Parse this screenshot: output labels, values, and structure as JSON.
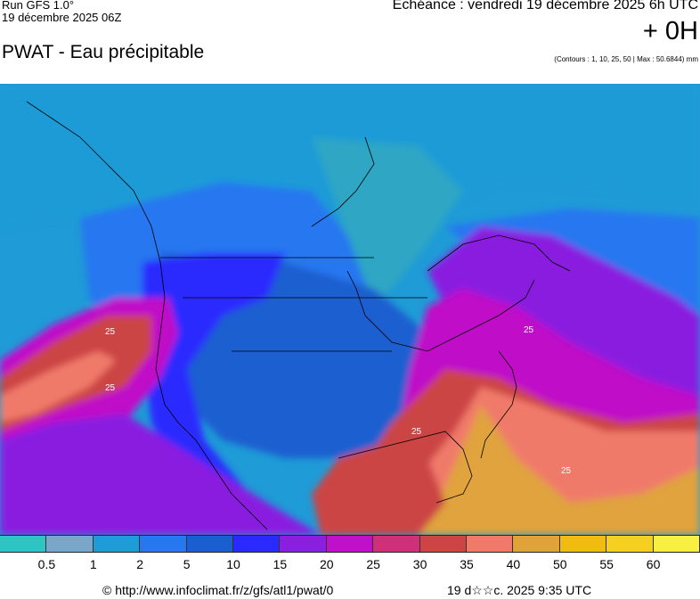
{
  "header": {
    "run_label": "Run GFS 1.0°",
    "run_date": "19 décembre 2025 06Z",
    "title": "PWAT - Eau précipitable",
    "valid_time": "Echéance : vendredi 19 décembre 2025 6h UTC",
    "lead_time": "+ 0H",
    "contours_note": "(Contours : 1, 10, 25, 50 | Max : 50.6844) mm"
  },
  "map": {
    "contour_labels": [
      "25",
      "25",
      "25",
      "25",
      "25"
    ]
  },
  "legend": {
    "colors": [
      "#2ec4c4",
      "#7aa7c9",
      "#1f9bd7",
      "#2677f0",
      "#1a5fd0",
      "#2a2aff",
      "#8a1fe0",
      "#c010c8",
      "#d0307a",
      "#cc4444",
      "#f07a6a",
      "#e0a33c",
      "#f0bc10",
      "#f5d020",
      "#f8f040"
    ],
    "labels": [
      "0.5",
      "1",
      "2",
      "5",
      "10",
      "15",
      "20",
      "25",
      "30",
      "35",
      "40",
      "50",
      "55",
      "60"
    ]
  },
  "footer": {
    "url": "© http://www.infoclimat.fr/z/gfs/atl1/pwat/0",
    "date": "19 d☆☆c. 2025  9:35 UTC"
  }
}
